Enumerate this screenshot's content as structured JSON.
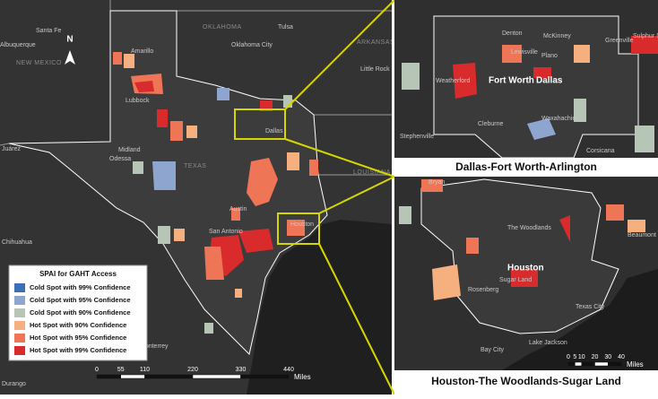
{
  "main_map": {
    "places": [
      "Santa Fe",
      "Albuquerque",
      "NEW MEXICO",
      "OKLAHOMA",
      "Tulsa",
      "Oklahoma City",
      "ARKANSAS",
      "Little Rock",
      "Amarillo",
      "Lubbock",
      "Midland",
      "Odessa",
      "TEXAS",
      "Dallas",
      "LOUISIANA",
      "Austin",
      "Houston",
      "San Antonio",
      "Juárez",
      "Chihuahua",
      "Monterrey",
      "Durango"
    ],
    "north_arrow": "N",
    "legend": {
      "title": "SPAI for GAHT Access",
      "items": [
        {
          "label": "Cold Spot with 99% Confidence",
          "color": "#3d6fb6"
        },
        {
          "label": "Cold Spot with 95% Confidence",
          "color": "#8ea6cf"
        },
        {
          "label": "Cold Spot with 90% Confidence",
          "color": "#b7c5b6"
        },
        {
          "label": "Hot Spot with 90% Confidence",
          "color": "#f6b07f"
        },
        {
          "label": "Hot Spot with 95% Confidence",
          "color": "#ee7656"
        },
        {
          "label": "Hot Spot with 99% Confidence",
          "color": "#d92b2b"
        }
      ]
    },
    "scale_bar": {
      "ticks": [
        0,
        55,
        110,
        220,
        330,
        440
      ],
      "unit": "Miles"
    }
  },
  "insets": [
    {
      "title": "Dallas-Fort Worth-Arlington",
      "places": [
        "Denton",
        "McKinney",
        "Greenville",
        "Sulphur Springs",
        "Lewisville",
        "Plano",
        "Fort Worth",
        "Dallas",
        "Weatherford",
        "Cleburne",
        "Waxahachie",
        "Stephenville",
        "Corsicana"
      ]
    },
    {
      "title": "Houston-The Woodlands-Sugar Land",
      "places": [
        "Bryan",
        "The Woodlands",
        "Houston",
        "Sugar Land",
        "Rosenberg",
        "Beaumont",
        "Texas City",
        "Bay City",
        "Lake Jackson"
      ],
      "scale_bar": {
        "ticks": [
          0,
          5,
          10,
          20,
          30,
          40
        ],
        "unit": "Miles"
      }
    }
  ]
}
